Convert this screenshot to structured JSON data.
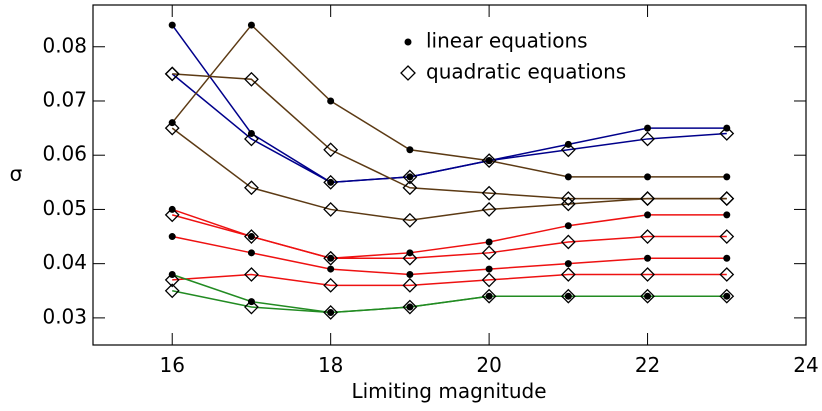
{
  "chart_data": {
    "type": "line",
    "x_label": "Limiting magnitude",
    "y_label": "σ",
    "x": [
      16,
      17,
      18,
      19,
      20,
      21,
      22,
      23
    ],
    "xlim": [
      15,
      24
    ],
    "ylim": [
      0.025,
      0.0877
    ],
    "xticks": [
      16,
      18,
      20,
      22,
      24
    ],
    "yticks": [
      0.03,
      0.04,
      0.05,
      0.06,
      0.07,
      0.08
    ],
    "legend": [
      {
        "label": "linear equations",
        "marker": "dot"
      },
      {
        "label": "quadratic equations",
        "marker": "diamond"
      }
    ],
    "series": [
      {
        "color": "#00008b",
        "marker": "dot",
        "values": [
          0.084,
          0.064,
          0.055,
          0.056,
          0.059,
          0.062,
          0.065,
          0.065
        ]
      },
      {
        "color": "#00008b",
        "marker": "diamond",
        "values": [
          0.075,
          0.063,
          0.055,
          0.056,
          0.059,
          0.061,
          0.063,
          0.064
        ]
      },
      {
        "color": "#5c3a14",
        "marker": "dot",
        "values": [
          0.066,
          0.084,
          0.07,
          0.061,
          0.059,
          0.056,
          0.056,
          0.056
        ]
      },
      {
        "color": "#5c3a14",
        "marker": "diamond",
        "values": [
          0.075,
          0.074,
          0.061,
          0.054,
          0.053,
          0.052,
          0.052,
          0.052
        ]
      },
      {
        "color": "#5c3a14",
        "marker": "diamond",
        "values": [
          0.065,
          0.054,
          0.05,
          0.048,
          0.05,
          0.051,
          0.052,
          0.052
        ]
      },
      {
        "color": "#ee1111",
        "marker": "dot",
        "values": [
          0.05,
          0.045,
          0.041,
          0.042,
          0.044,
          0.047,
          0.049,
          0.049
        ]
      },
      {
        "color": "#ee1111",
        "marker": "diamond",
        "values": [
          0.049,
          0.045,
          0.041,
          0.041,
          0.042,
          0.044,
          0.045,
          0.045
        ]
      },
      {
        "color": "#ee1111",
        "marker": "dot",
        "values": [
          0.045,
          0.042,
          0.039,
          0.038,
          0.039,
          0.04,
          0.041,
          0.041
        ]
      },
      {
        "color": "#ee1111",
        "marker": "diamond",
        "values": [
          0.037,
          0.038,
          0.036,
          0.036,
          0.037,
          0.038,
          0.038,
          0.038
        ]
      },
      {
        "color": "#228b22",
        "marker": "dot",
        "values": [
          0.038,
          0.033,
          0.031,
          0.032,
          0.034,
          0.034,
          0.034,
          0.034
        ]
      },
      {
        "color": "#228b22",
        "marker": "diamond",
        "values": [
          0.035,
          0.032,
          0.031,
          0.032,
          0.034,
          0.034,
          0.034,
          0.034
        ]
      }
    ]
  }
}
